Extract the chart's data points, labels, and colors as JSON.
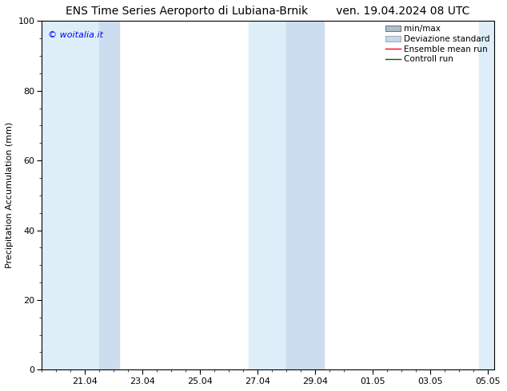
{
  "title_left": "ENS Time Series Aeroporto di Lubiana-Brnik",
  "title_right": "ven. 19.04.2024 08 UTC",
  "ylabel": "Precipitation Accumulation (mm)",
  "watermark": "© woitalia.it",
  "ylim": [
    0,
    100
  ],
  "yticks": [
    0,
    20,
    40,
    60,
    80,
    100
  ],
  "x_ticks_labels": [
    "21.04",
    "23.04",
    "25.04",
    "27.04",
    "29.04",
    "01.05",
    "03.05",
    "05.05"
  ],
  "shaded_color_light": "#ddeef8",
  "shaded_color_mid": "#ccddf0",
  "legend_entries": [
    "min/max",
    "Deviazione standard",
    "Ensemble mean run",
    "Controll run"
  ],
  "background_color": "#ffffff",
  "title_fontsize": 10,
  "tick_fontsize": 8,
  "label_fontsize": 8
}
